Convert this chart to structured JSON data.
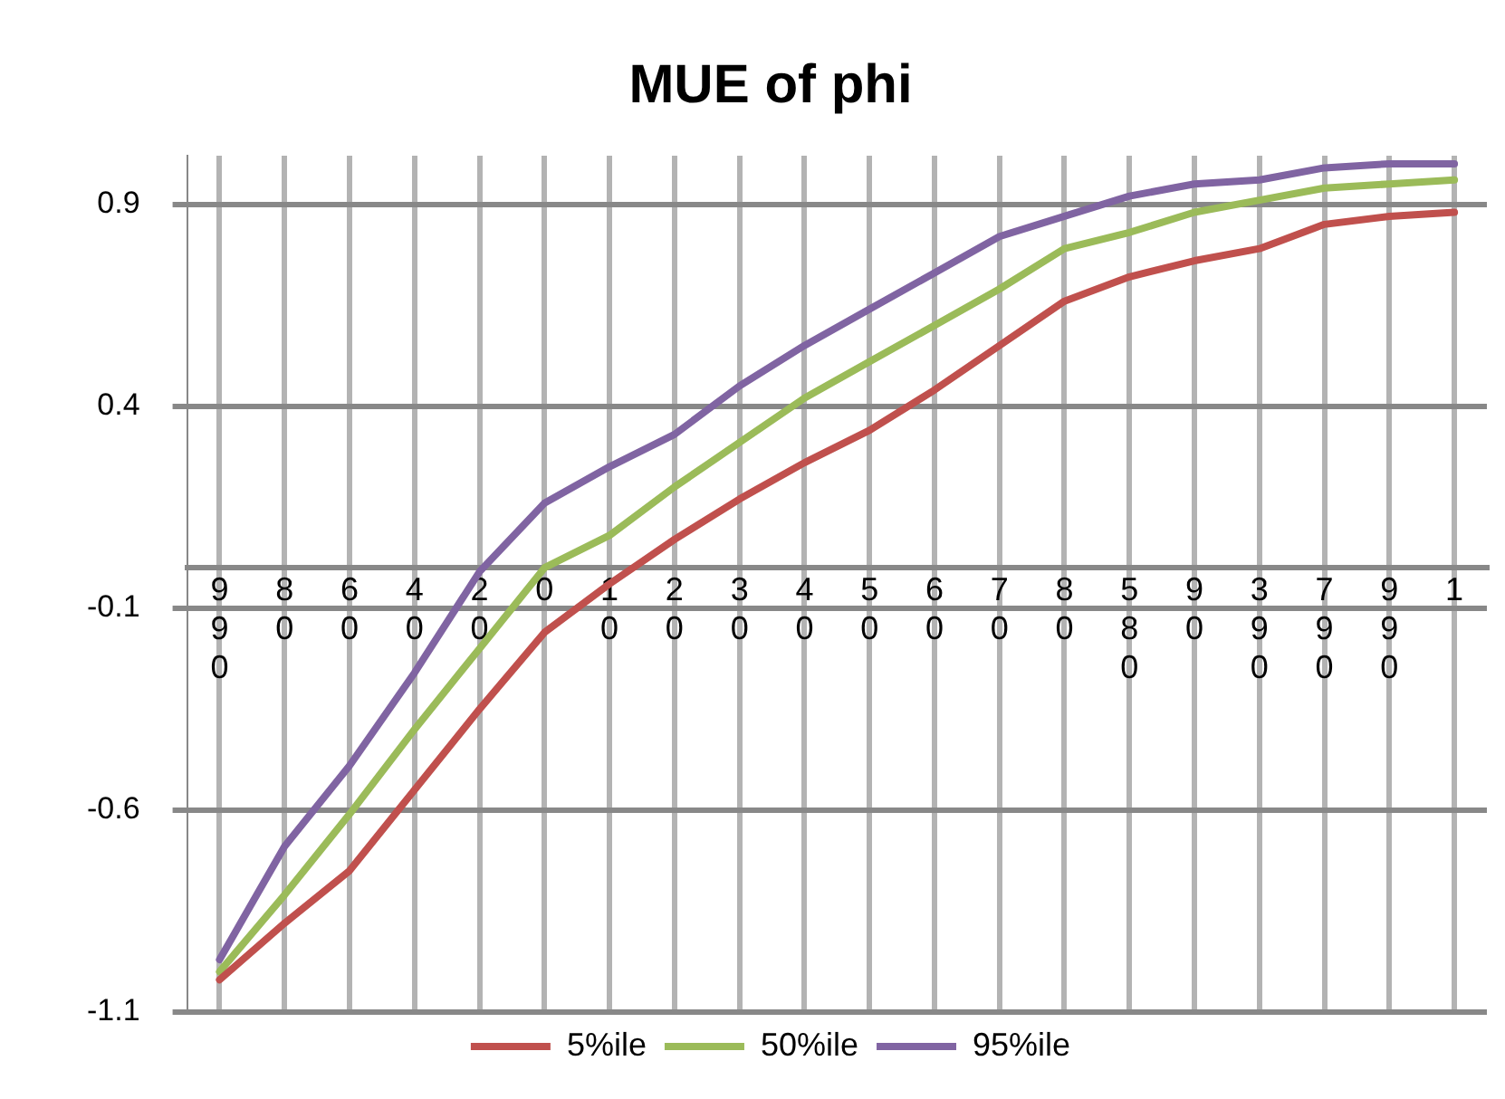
{
  "chart_data": {
    "type": "line",
    "title": "MUE of phi",
    "categories": [
      "990",
      "80",
      "60",
      "40",
      "20",
      "0",
      "10",
      "20",
      "30",
      "40",
      "50",
      "60",
      "70",
      "80",
      "580",
      "90",
      "390",
      "790",
      "990",
      "1"
    ],
    "series": [
      {
        "name": "5%ile",
        "color": "#c0504d",
        "values": [
          -1.02,
          -0.88,
          -0.75,
          -0.55,
          -0.35,
          -0.16,
          -0.04,
          0.07,
          0.17,
          0.26,
          0.34,
          0.44,
          0.55,
          0.66,
          0.72,
          0.76,
          0.79,
          0.85,
          0.87,
          0.88
        ]
      },
      {
        "name": "50%ile",
        "color": "#9bbb59",
        "values": [
          -1.0,
          -0.81,
          -0.61,
          -0.4,
          -0.2,
          0.0,
          0.08,
          0.2,
          0.31,
          0.42,
          0.51,
          0.6,
          0.69,
          0.79,
          0.83,
          0.88,
          0.91,
          0.94,
          0.95,
          0.96
        ]
      },
      {
        "name": "95%ile",
        "color": "#8064a2",
        "values": [
          -0.97,
          -0.69,
          -0.49,
          -0.26,
          -0.01,
          0.16,
          0.25,
          0.33,
          0.45,
          0.55,
          0.64,
          0.73,
          0.82,
          0.87,
          0.92,
          0.95,
          0.96,
          0.99,
          1.0,
          1.0
        ]
      }
    ],
    "ylim": [
      -1.1,
      1.02
    ],
    "yticks": [
      -1.1,
      -0.6,
      -0.1,
      0.4,
      0.9
    ],
    "grid": true,
    "legend": "bottom",
    "marker": "none",
    "line_style": "solid"
  }
}
